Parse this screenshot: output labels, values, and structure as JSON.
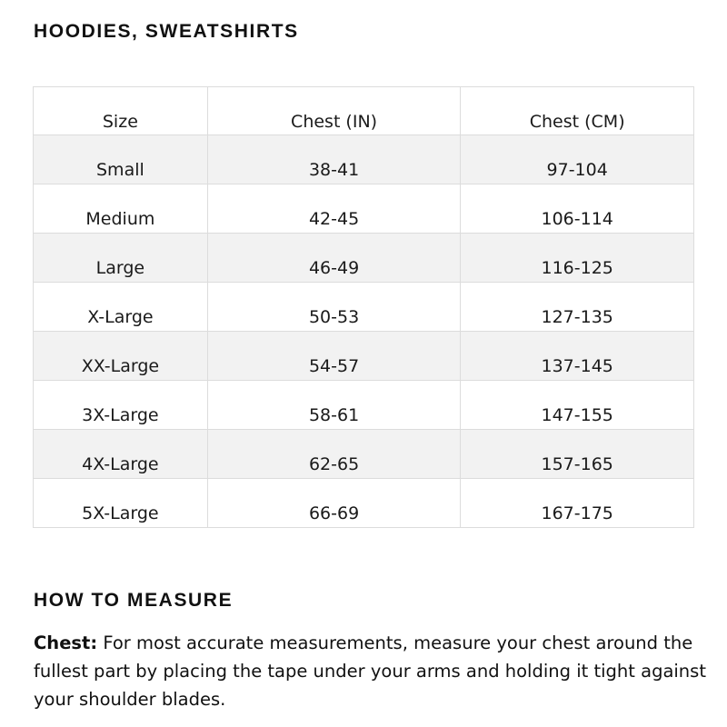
{
  "title": "HOODIES, SWEATSHIRTS",
  "table": {
    "headers": [
      "Size",
      "Chest (IN)",
      "Chest (CM)"
    ],
    "rows": [
      [
        "Small",
        "38-41",
        "97-104"
      ],
      [
        "Medium",
        "42-45",
        "106-114"
      ],
      [
        "Large",
        "46-49",
        "116-125"
      ],
      [
        "X-Large",
        "50-53",
        "127-135"
      ],
      [
        "XX-Large",
        "54-57",
        "137-145"
      ],
      [
        "3X-Large",
        "58-61",
        "147-155"
      ],
      [
        "4X-Large",
        "62-65",
        "157-165"
      ],
      [
        "5X-Large",
        "66-69",
        "167-175"
      ]
    ]
  },
  "measure": {
    "title": "HOW TO MEASURE",
    "label": "Chest:",
    "text": " For most accurate measurements, measure your chest around the fullest part by placing the tape under your arms and holding it tight against your shoulder blades."
  },
  "colors": {
    "row_shade": "#f2f2f2",
    "border": "#dcdcdc"
  }
}
